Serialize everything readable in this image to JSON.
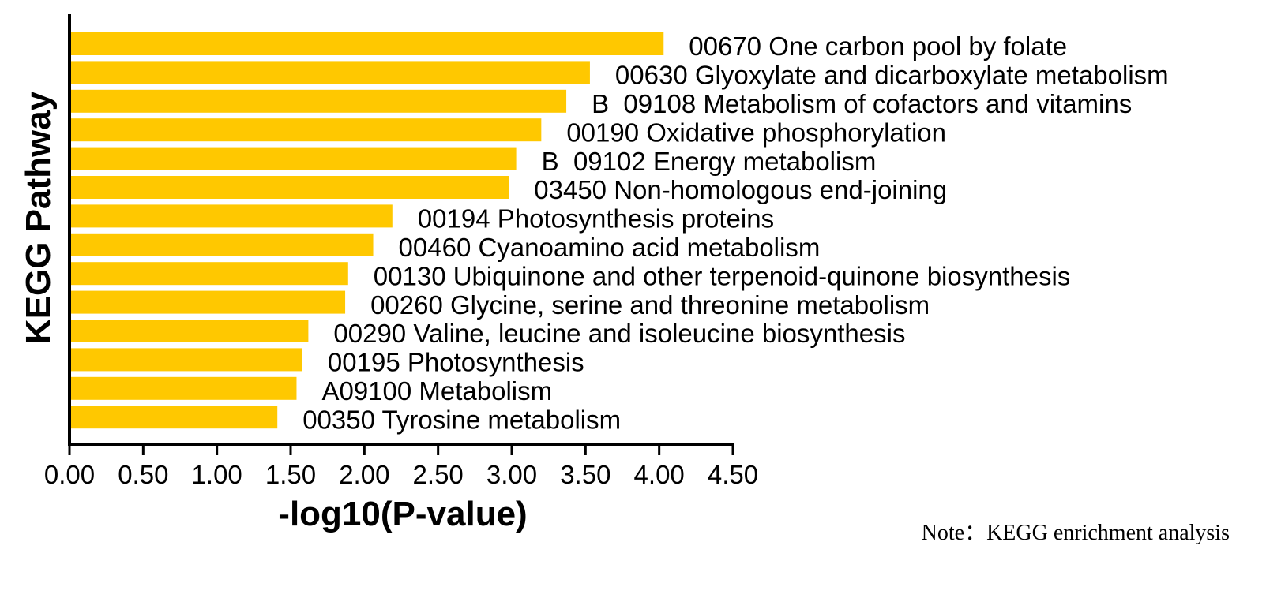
{
  "chart_data": {
    "type": "bar",
    "orientation": "horizontal",
    "categories": [
      "00670 One carbon pool by folate",
      "00630 Glyoxylate and dicarboxylate metabolism",
      "B  09108 Metabolism of cofactors and vitamins",
      "00190 Oxidative phosphorylation",
      "B  09102 Energy metabolism",
      "03450 Non-homologous end-joining",
      "00194 Photosynthesis proteins",
      "00460 Cyanoamino acid metabolism",
      "00130 Ubiquinone and other terpenoid-quinone biosynthesis",
      "00260 Glycine, serine and threonine metabolism",
      "00290 Valine, leucine and isoleucine biosynthesis",
      "00195 Photosynthesis",
      "A09100 Metabolism",
      "00350 Tyrosine metabolism"
    ],
    "values": [
      4.03,
      3.53,
      3.37,
      3.2,
      3.03,
      2.98,
      2.19,
      2.06,
      1.89,
      1.87,
      1.62,
      1.58,
      1.54,
      1.41
    ],
    "xlabel": "-log10(P-value)",
    "ylabel": "KEGG Pathway",
    "xlim": [
      0,
      4.5
    ],
    "xticks": [
      "0.00",
      "0.50",
      "1.00",
      "1.50",
      "2.00",
      "2.50",
      "3.00",
      "3.50",
      "4.00",
      "4.50"
    ],
    "bar_color": "#FFC800",
    "grid": false,
    "legend": "none"
  },
  "note": "Note：KEGG enrichment analysis"
}
